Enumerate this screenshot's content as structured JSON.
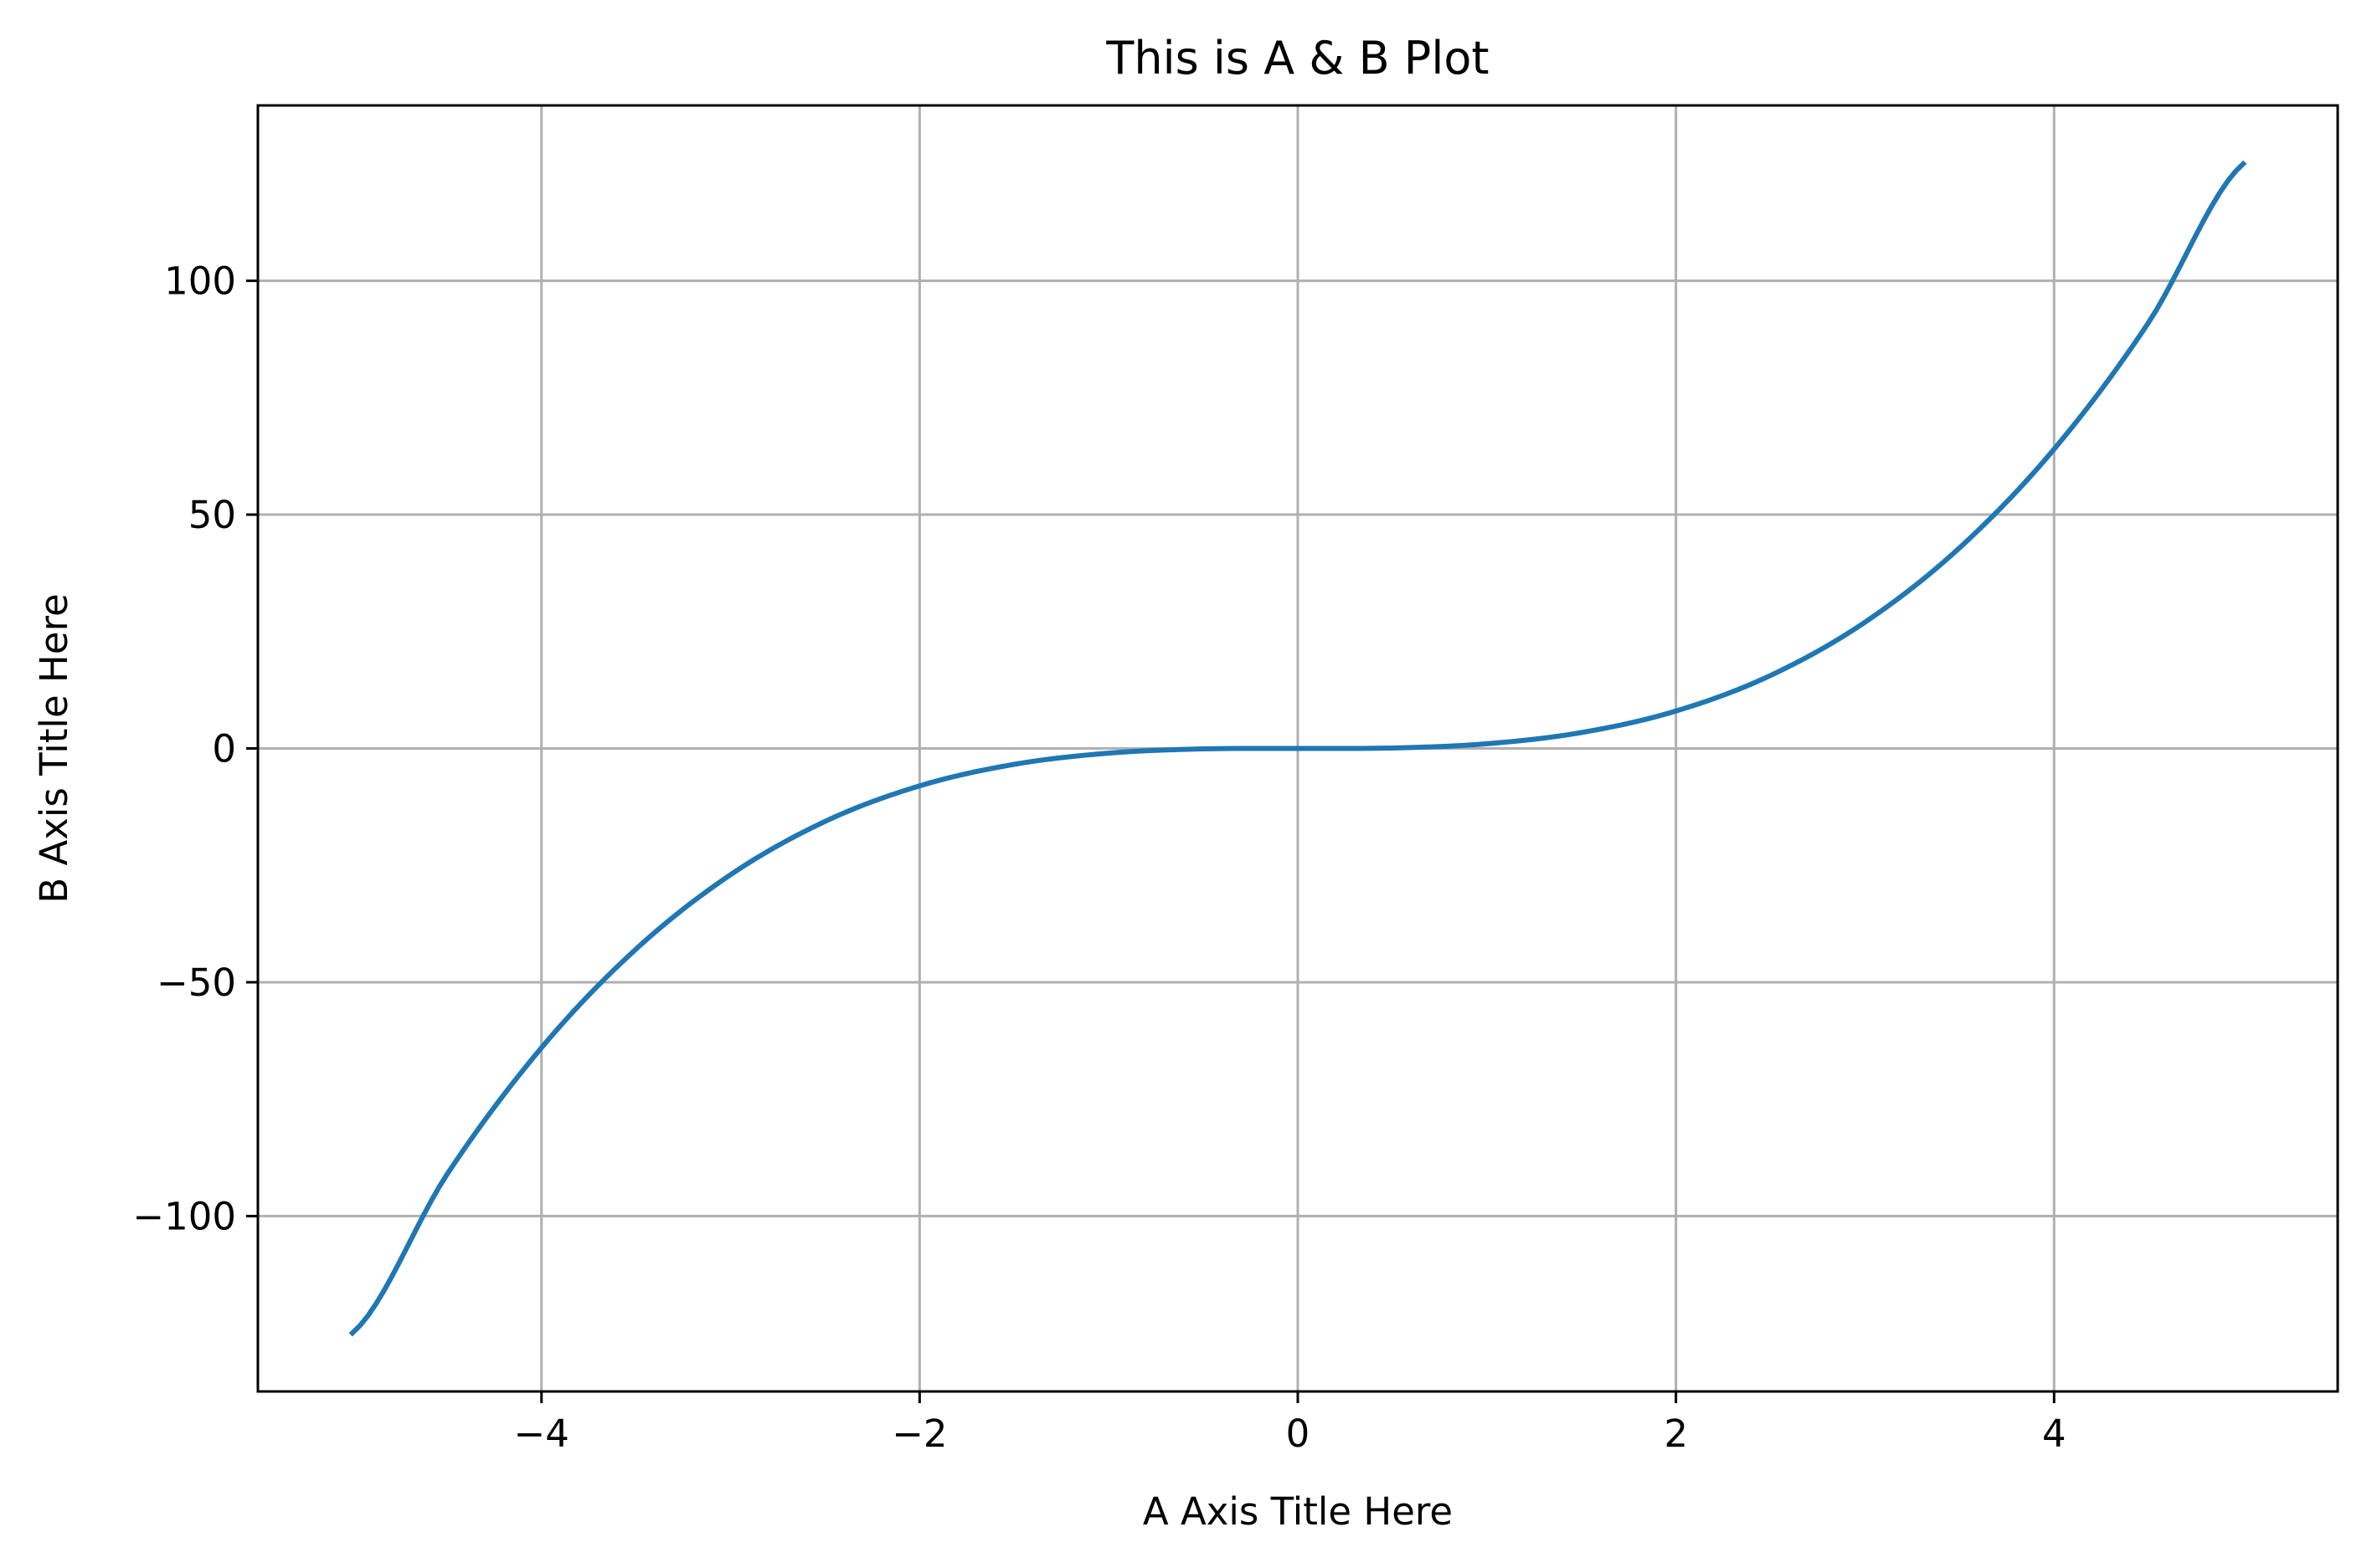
{
  "chart_data": {
    "type": "line",
    "title": "This is A & B Plot",
    "xlabel": "A Axis Title Here",
    "ylabel": "B Axis Title Here",
    "xlim": [
      -5.5,
      5.5
    ],
    "ylim": [
      -137.5,
      137.5
    ],
    "grid": true,
    "x_ticks": [
      -4,
      -2,
      0,
      2,
      4
    ],
    "x_tick_labels": [
      "−4",
      "−2",
      "0",
      "2",
      "4"
    ],
    "y_ticks": [
      -100,
      -50,
      0,
      50,
      100
    ],
    "y_tick_labels": [
      "−100",
      "−50",
      "0",
      "50",
      "100"
    ],
    "series": [
      {
        "color": "#1f77b4",
        "x": [
          -5.0,
          -4.5,
          -4.0,
          -3.5,
          -3.0,
          -2.5,
          -2.0,
          -1.5,
          -1.0,
          -0.5,
          0.0,
          0.5,
          1.0,
          1.5,
          2.0,
          2.5,
          3.0,
          3.5,
          4.0,
          4.5,
          5.0
        ],
        "y": [
          -125.0,
          -91.1,
          -64.0,
          -42.9,
          -27.0,
          -15.6,
          -8.0,
          -3.4,
          -1.0,
          -0.1,
          0.0,
          0.1,
          1.0,
          3.4,
          8.0,
          15.6,
          27.0,
          42.9,
          64.0,
          91.1,
          125.0
        ]
      }
    ]
  }
}
